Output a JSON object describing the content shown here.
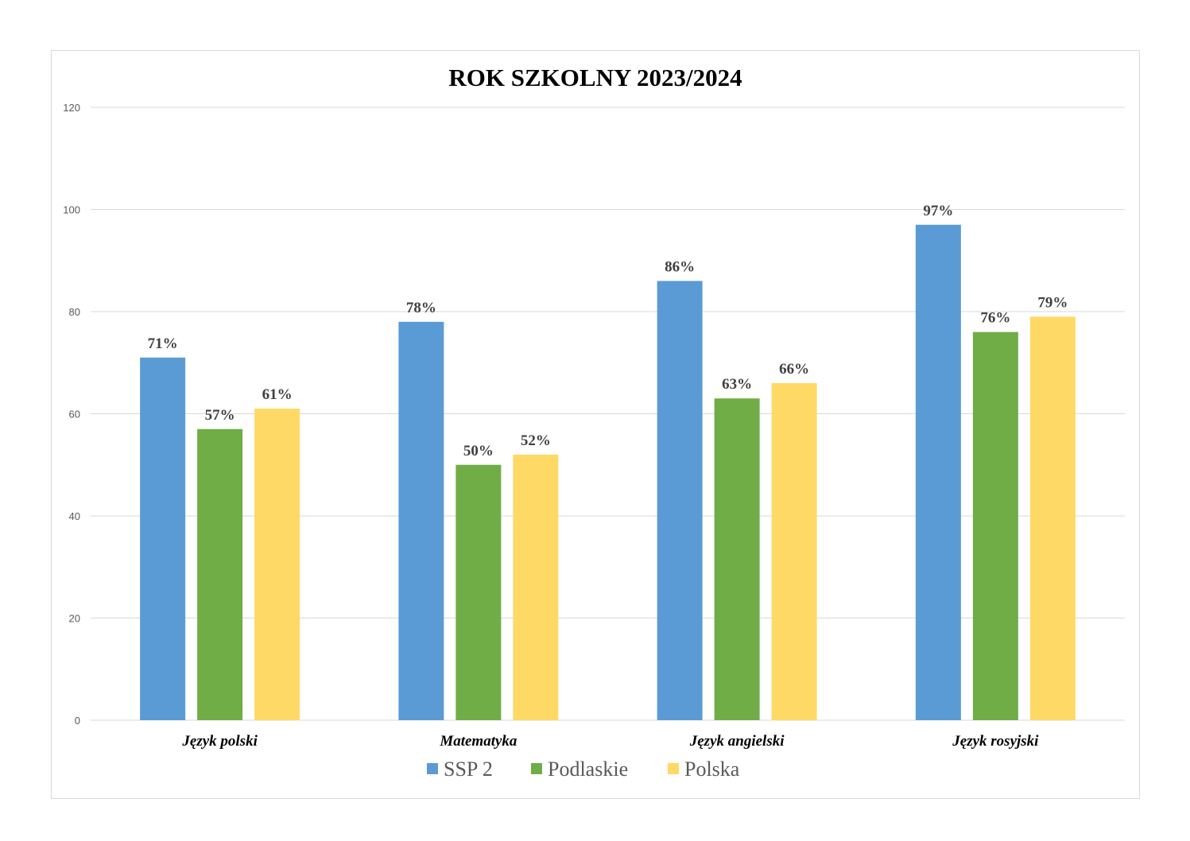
{
  "chart_data": {
    "type": "bar",
    "title": "ROK SZKOLNY 2023/2024",
    "xlabel": "",
    "ylabel": "",
    "ylim": [
      0,
      120
    ],
    "yticks": [
      0,
      20,
      40,
      60,
      80,
      100,
      120
    ],
    "grid": true,
    "legend_position": "bottom",
    "categories": [
      "Język polski",
      "Matematyka",
      "Język angielski",
      "Język rosyjski"
    ],
    "series": [
      {
        "name": "SSP 2",
        "color": "#5b9bd5",
        "values": [
          71,
          78,
          86,
          97
        ],
        "labels": [
          "71%",
          "78%",
          "86%",
          "97%"
        ]
      },
      {
        "name": "Podlaskie",
        "color": "#70ad47",
        "values": [
          57,
          50,
          63,
          76
        ],
        "labels": [
          "57%",
          "50%",
          "63%",
          "76%"
        ]
      },
      {
        "name": "Polska",
        "color": "#ffd966",
        "values": [
          61,
          52,
          66,
          79
        ],
        "labels": [
          "61%",
          "52%",
          "66%",
          "79%"
        ]
      }
    ]
  }
}
